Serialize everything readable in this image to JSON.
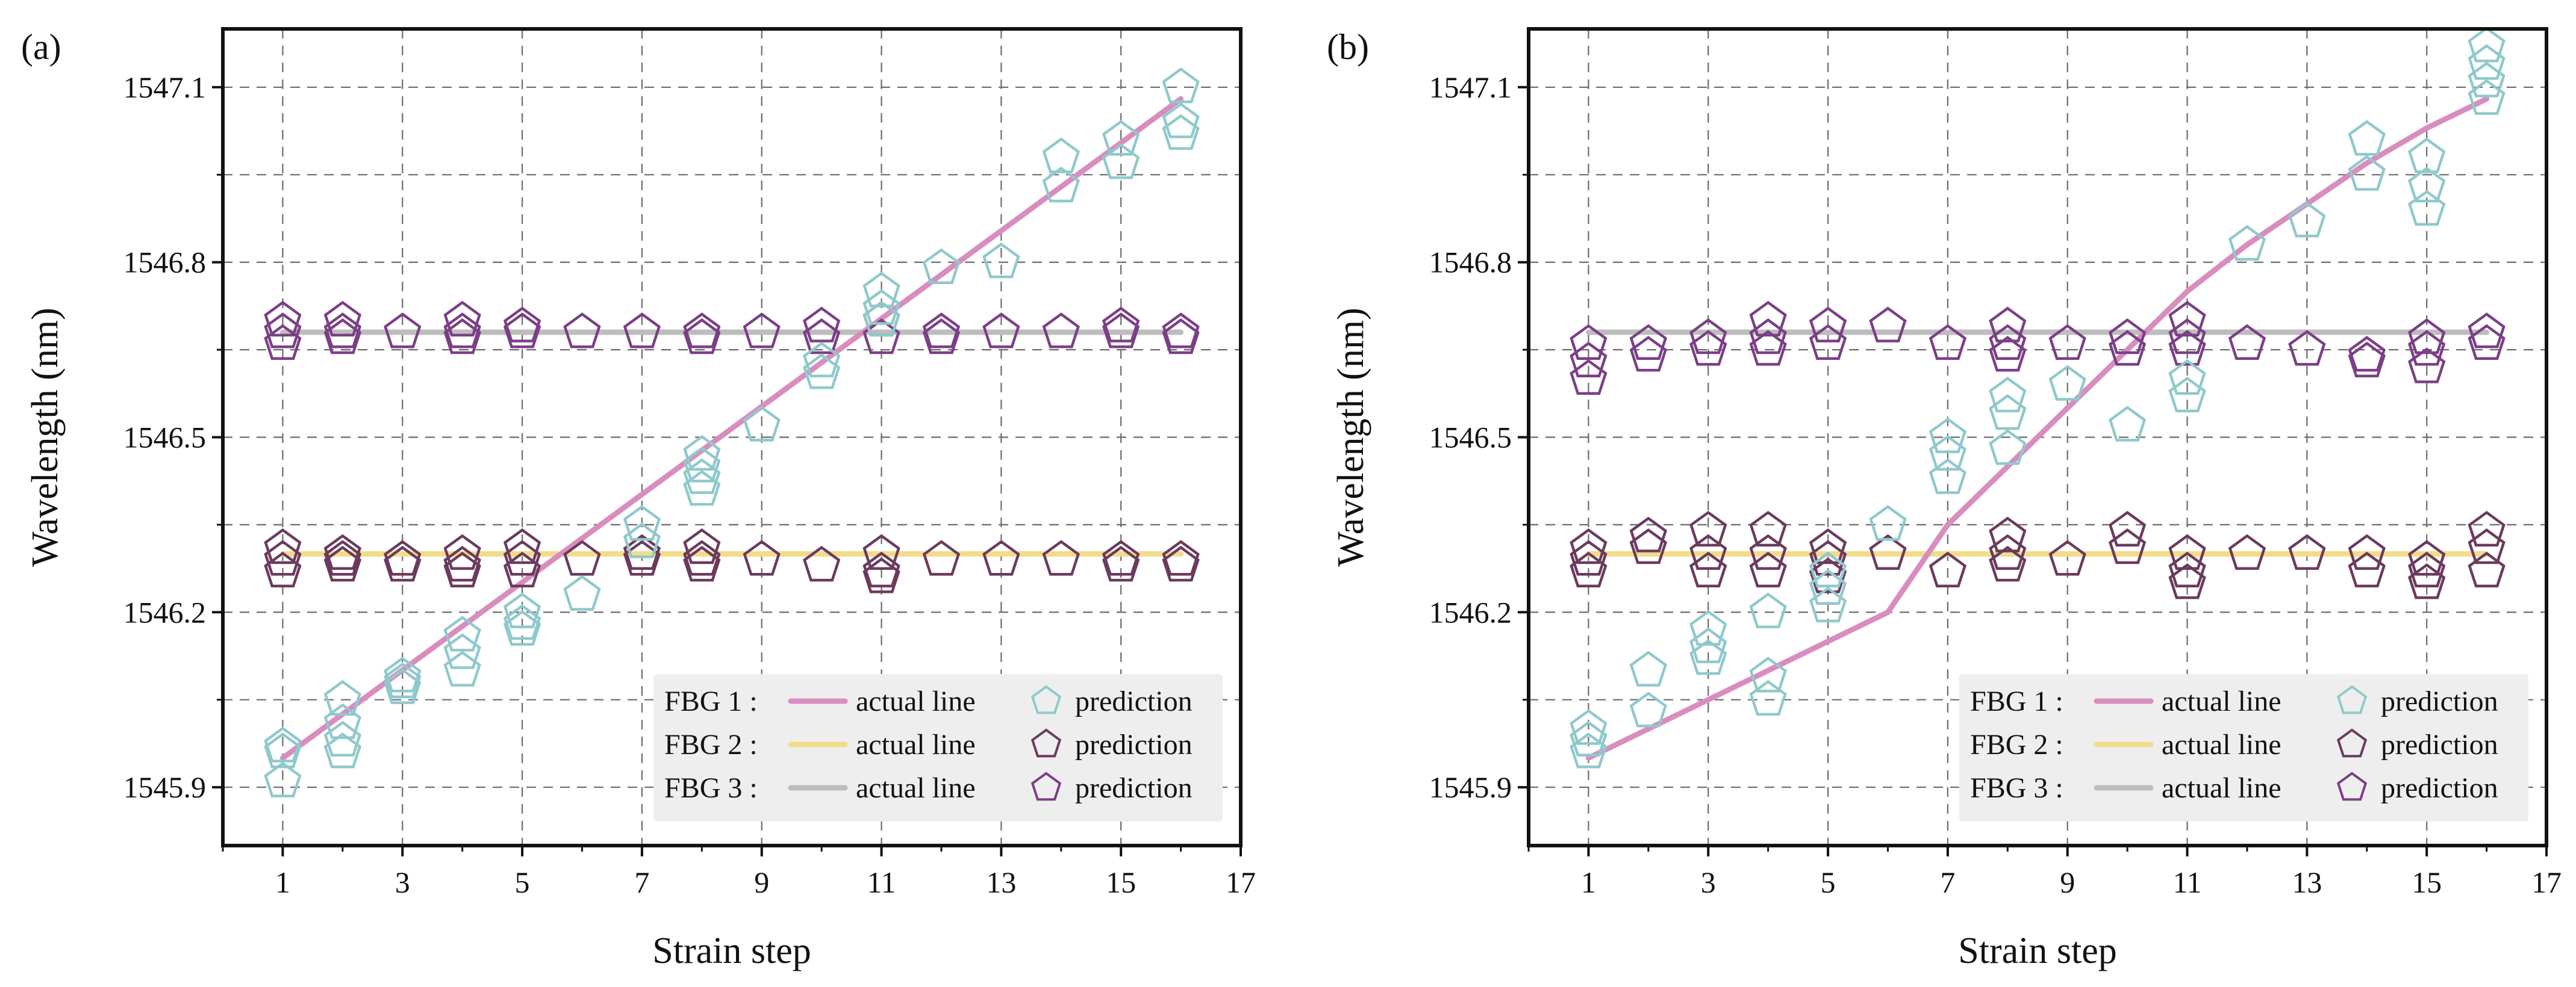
{
  "chart_data": [
    {
      "type": "line",
      "panel_label": "(a)",
      "xlabel": "Strain step",
      "ylabel": "Wavelength (nm)",
      "xlim": [
        0,
        17
      ],
      "ylim": [
        1545.8,
        1547.2
      ],
      "xticks": [
        1,
        3,
        5,
        7,
        9,
        11,
        13,
        15,
        17
      ],
      "yticks": [
        1545.9,
        1546.2,
        1546.5,
        1546.8,
        1547.1
      ],
      "ytick_labels": [
        "1545.9",
        "1546.2",
        "1546.5",
        "1546.8",
        "1547.1"
      ],
      "grid": true,
      "legend_position": "lower-right",
      "legend": [
        {
          "group": "FBG 1 :",
          "line_label": "actual line",
          "marker_label": "prediction"
        },
        {
          "group": "FBG 2 :",
          "line_label": "actual line",
          "marker_label": "prediction"
        },
        {
          "group": "FBG 3 :",
          "line_label": "actual line",
          "marker_label": "prediction"
        }
      ],
      "colors": {
        "fbg1": "#d98dbf",
        "fbg2": "#f2dc8a",
        "fbg3": "#bdbdbd",
        "pred1": "#8fc9cc",
        "pred2": "#6b3a5e",
        "pred3": "#7b3f86"
      },
      "series": [
        {
          "name": "FBG 1 actual line",
          "x": [
            1,
            16
          ],
          "values": [
            1545.95,
            1547.08
          ]
        },
        {
          "name": "FBG 2 actual line",
          "x": [
            1,
            16
          ],
          "values": [
            1546.3,
            1546.3
          ]
        },
        {
          "name": "FBG 3 actual line",
          "x": [
            1,
            16
          ],
          "values": [
            1546.68,
            1546.68
          ]
        },
        {
          "name": "FBG 1 prediction",
          "x": [
            1,
            1,
            1,
            2,
            2,
            2,
            2,
            3,
            3,
            3,
            4,
            4,
            4,
            5,
            5,
            5,
            6,
            7,
            7,
            8,
            8,
            8,
            8,
            9,
            10,
            10,
            11,
            11,
            11,
            12,
            13,
            14,
            14,
            15,
            15,
            16,
            16,
            16
          ],
          "values": [
            1545.97,
            1545.96,
            1545.91,
            1546.05,
            1546.01,
            1545.98,
            1545.96,
            1546.09,
            1546.08,
            1546.07,
            1546.16,
            1546.13,
            1546.1,
            1546.2,
            1546.18,
            1546.17,
            1546.23,
            1546.35,
            1546.32,
            1546.47,
            1546.45,
            1546.43,
            1546.41,
            1546.52,
            1546.63,
            1546.61,
            1546.75,
            1546.72,
            1546.7,
            1546.79,
            1546.8,
            1546.98,
            1546.93,
            1547.01,
            1546.97,
            1547.1,
            1547.04,
            1547.02
          ]
        },
        {
          "name": "FBG 2 prediction",
          "x": [
            1,
            1,
            1,
            2,
            2,
            2,
            3,
            3,
            4,
            4,
            4,
            5,
            5,
            5,
            6,
            7,
            7,
            8,
            8,
            8,
            9,
            10,
            11,
            11,
            11,
            12,
            13,
            14,
            15,
            15,
            16,
            16
          ],
          "values": [
            1546.31,
            1546.29,
            1546.27,
            1546.3,
            1546.29,
            1546.28,
            1546.29,
            1546.28,
            1546.3,
            1546.28,
            1546.27,
            1546.31,
            1546.29,
            1546.27,
            1546.29,
            1546.3,
            1546.29,
            1546.31,
            1546.29,
            1546.28,
            1546.29,
            1546.28,
            1546.3,
            1546.27,
            1546.26,
            1546.29,
            1546.29,
            1546.29,
            1546.29,
            1546.28,
            1546.29,
            1546.28
          ]
        },
        {
          "name": "FBG 3 prediction",
          "x": [
            1,
            1,
            1,
            2,
            2,
            2,
            3,
            4,
            4,
            4,
            5,
            5,
            6,
            7,
            8,
            8,
            9,
            10,
            10,
            11,
            11,
            12,
            12,
            13,
            14,
            15,
            15,
            16,
            16
          ],
          "values": [
            1546.7,
            1546.68,
            1546.66,
            1546.7,
            1546.68,
            1546.67,
            1546.68,
            1546.7,
            1546.68,
            1546.67,
            1546.69,
            1546.68,
            1546.68,
            1546.68,
            1546.68,
            1546.67,
            1546.68,
            1546.69,
            1546.67,
            1546.7,
            1546.67,
            1546.68,
            1546.67,
            1546.68,
            1546.68,
            1546.69,
            1546.68,
            1546.68,
            1546.67
          ]
        }
      ]
    },
    {
      "type": "line",
      "panel_label": "(b)",
      "xlabel": "Strain step",
      "ylabel": "Wavelength (nm)",
      "xlim": [
        0,
        17
      ],
      "ylim": [
        1545.8,
        1547.2
      ],
      "xticks": [
        1,
        3,
        5,
        7,
        9,
        11,
        13,
        15,
        17
      ],
      "yticks": [
        1545.9,
        1546.2,
        1546.5,
        1546.8,
        1547.1
      ],
      "ytick_labels": [
        "1545.9",
        "1546.2",
        "1546.5",
        "1546.8",
        "1547.1"
      ],
      "grid": true,
      "legend_position": "lower-right",
      "legend": [
        {
          "group": "FBG 1 :",
          "line_label": "actual line",
          "marker_label": "prediction"
        },
        {
          "group": "FBG 2 :",
          "line_label": "actual line",
          "marker_label": "prediction"
        },
        {
          "group": "FBG 3 :",
          "line_label": "actual line",
          "marker_label": "prediction"
        }
      ],
      "colors": {
        "fbg1": "#d98dbf",
        "fbg2": "#f2dc8a",
        "fbg3": "#bdbdbd",
        "pred1": "#8fc9cc",
        "pred2": "#6b3a5e",
        "pred3": "#7b3f86"
      },
      "series": [
        {
          "name": "FBG 1 actual line",
          "x": [
            1,
            2,
            3,
            4,
            5,
            6,
            7,
            8,
            9,
            10,
            11,
            12,
            13,
            14,
            15,
            16
          ],
          "values": [
            1545.95,
            1546.0,
            1546.05,
            1546.1,
            1546.15,
            1546.2,
            1546.35,
            1546.45,
            1546.55,
            1546.65,
            1546.75,
            1546.83,
            1546.9,
            1546.97,
            1547.03,
            1547.08
          ]
        },
        {
          "name": "FBG 2 actual line",
          "x": [
            1,
            16
          ],
          "values": [
            1546.3,
            1546.3
          ]
        },
        {
          "name": "FBG 3 actual line",
          "x": [
            1,
            16
          ],
          "values": [
            1546.68,
            1546.68
          ]
        },
        {
          "name": "FBG 1 prediction",
          "x": [
            1,
            1,
            1,
            2,
            2,
            3,
            3,
            3,
            4,
            4,
            4,
            5,
            5,
            5,
            6,
            7,
            7,
            7,
            8,
            8,
            8,
            9,
            10,
            11,
            11,
            12,
            13,
            14,
            14,
            15,
            15,
            15,
            16,
            16,
            16,
            16
          ],
          "values": [
            1546.0,
            1545.98,
            1545.96,
            1546.1,
            1546.03,
            1546.17,
            1546.14,
            1546.12,
            1546.2,
            1546.09,
            1546.05,
            1546.27,
            1546.24,
            1546.21,
            1546.35,
            1546.5,
            1546.47,
            1546.43,
            1546.57,
            1546.54,
            1546.48,
            1546.59,
            1546.52,
            1546.6,
            1546.57,
            1546.83,
            1546.87,
            1547.01,
            1546.95,
            1546.98,
            1546.93,
            1546.89,
            1547.17,
            1547.14,
            1547.11,
            1547.08
          ]
        },
        {
          "name": "FBG 2 prediction",
          "x": [
            1,
            1,
            1,
            2,
            2,
            3,
            3,
            3,
            4,
            4,
            4,
            5,
            5,
            5,
            6,
            7,
            8,
            8,
            8,
            9,
            10,
            10,
            11,
            11,
            11,
            12,
            13,
            14,
            14,
            15,
            15,
            15,
            16,
            16,
            16
          ],
          "values": [
            1546.31,
            1546.29,
            1546.27,
            1546.33,
            1546.31,
            1546.34,
            1546.3,
            1546.27,
            1546.34,
            1546.3,
            1546.27,
            1546.31,
            1546.29,
            1546.26,
            1546.3,
            1546.27,
            1546.33,
            1546.3,
            1546.28,
            1546.29,
            1546.34,
            1546.31,
            1546.3,
            1546.27,
            1546.25,
            1546.3,
            1546.3,
            1546.3,
            1546.27,
            1546.29,
            1546.27,
            1546.25,
            1546.34,
            1546.31,
            1546.27
          ]
        },
        {
          "name": "FBG 3 prediction",
          "x": [
            1,
            1,
            1,
            2,
            2,
            3,
            3,
            4,
            4,
            4,
            5,
            5,
            6,
            7,
            8,
            8,
            8,
            9,
            10,
            10,
            11,
            11,
            11,
            12,
            13,
            14,
            14,
            15,
            15,
            15,
            16,
            16
          ],
          "values": [
            1546.66,
            1546.63,
            1546.6,
            1546.66,
            1546.64,
            1546.67,
            1546.65,
            1546.7,
            1546.67,
            1546.65,
            1546.69,
            1546.66,
            1546.69,
            1546.66,
            1546.69,
            1546.66,
            1546.64,
            1546.66,
            1546.67,
            1546.65,
            1546.7,
            1546.67,
            1546.65,
            1546.66,
            1546.65,
            1546.64,
            1546.63,
            1546.67,
            1546.65,
            1546.62,
            1546.68,
            1546.66
          ]
        }
      ]
    }
  ]
}
